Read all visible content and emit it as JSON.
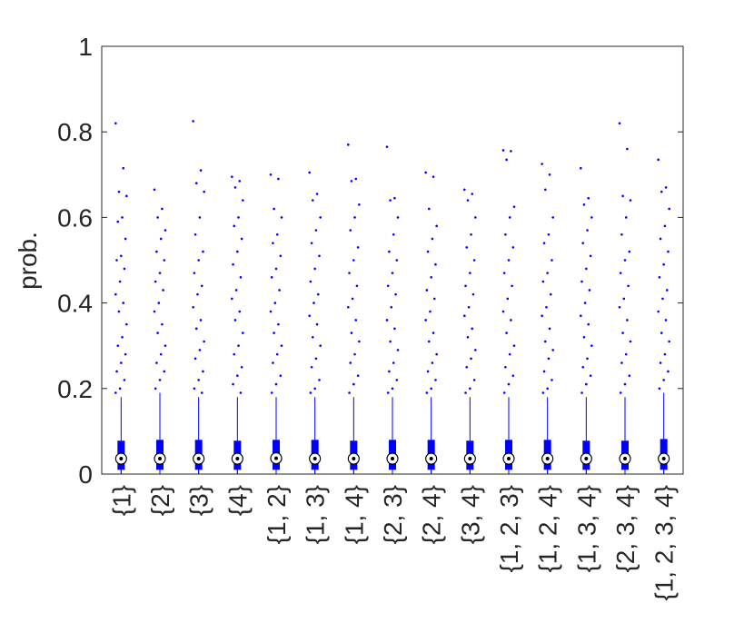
{
  "chart_data": {
    "type": "box",
    "ylabel": "prob.",
    "color": "#0000ff",
    "ylim": [
      0,
      1
    ],
    "yticks": [
      0,
      0.2,
      0.4,
      0.6,
      0.8,
      1
    ],
    "categories": [
      "{1}",
      "{2}",
      "{3}",
      "{4}",
      "{1, 2}",
      "{1, 3}",
      "{1, 4}",
      "{2, 3}",
      "{2, 4}",
      "{3, 4}",
      "{1, 2, 3}",
      "{1, 2, 4}",
      "{1, 3, 4}",
      "{2, 3, 4}",
      "{1, 2, 3, 4}"
    ],
    "boxes": [
      {
        "whisker_low": 0,
        "q1": 0.01,
        "median": 0.036,
        "q3": 0.078,
        "whisker_high": 0.18,
        "outliers": [
          0.82,
          0.715,
          0.66,
          0.65,
          0.6,
          0.59,
          0.55,
          0.51,
          0.5,
          0.48,
          0.45,
          0.42,
          0.4,
          0.38,
          0.35,
          0.32,
          0.3,
          0.28,
          0.26,
          0.24,
          0.22,
          0.2,
          0.19
        ]
      },
      {
        "whisker_low": 0,
        "q1": 0.01,
        "median": 0.036,
        "q3": 0.08,
        "whisker_high": 0.19,
        "outliers": [
          0.665,
          0.62,
          0.6,
          0.57,
          0.55,
          0.52,
          0.5,
          0.47,
          0.45,
          0.43,
          0.4,
          0.38,
          0.35,
          0.33,
          0.3,
          0.28,
          0.26,
          0.24,
          0.22,
          0.2
        ]
      },
      {
        "whisker_low": 0,
        "q1": 0.01,
        "median": 0.036,
        "q3": 0.08,
        "whisker_high": 0.18,
        "outliers": [
          0.825,
          0.71,
          0.68,
          0.66,
          0.6,
          0.56,
          0.52,
          0.5,
          0.47,
          0.44,
          0.42,
          0.39,
          0.36,
          0.34,
          0.31,
          0.29,
          0.27,
          0.24,
          0.22,
          0.2,
          0.19
        ]
      },
      {
        "whisker_low": 0,
        "q1": 0.01,
        "median": 0.036,
        "q3": 0.078,
        "whisker_high": 0.18,
        "outliers": [
          0.695,
          0.685,
          0.67,
          0.64,
          0.6,
          0.58,
          0.55,
          0.52,
          0.49,
          0.46,
          0.43,
          0.41,
          0.38,
          0.36,
          0.33,
          0.3,
          0.28,
          0.25,
          0.23,
          0.21,
          0.19
        ]
      },
      {
        "whisker_low": 0,
        "q1": 0.01,
        "median": 0.037,
        "q3": 0.08,
        "whisker_high": 0.18,
        "outliers": [
          0.7,
          0.69,
          0.62,
          0.6,
          0.56,
          0.54,
          0.51,
          0.48,
          0.46,
          0.43,
          0.4,
          0.38,
          0.35,
          0.33,
          0.3,
          0.28,
          0.26,
          0.23,
          0.21,
          0.19
        ]
      },
      {
        "whisker_low": 0,
        "q1": 0.01,
        "median": 0.036,
        "q3": 0.08,
        "whisker_high": 0.18,
        "outliers": [
          0.705,
          0.655,
          0.64,
          0.6,
          0.57,
          0.54,
          0.51,
          0.48,
          0.45,
          0.42,
          0.4,
          0.37,
          0.35,
          0.32,
          0.3,
          0.27,
          0.25,
          0.22,
          0.2,
          0.19
        ]
      },
      {
        "whisker_low": 0,
        "q1": 0.01,
        "median": 0.036,
        "q3": 0.078,
        "whisker_high": 0.18,
        "outliers": [
          0.77,
          0.69,
          0.685,
          0.63,
          0.6,
          0.57,
          0.53,
          0.5,
          0.47,
          0.44,
          0.41,
          0.39,
          0.36,
          0.33,
          0.31,
          0.28,
          0.26,
          0.23,
          0.21,
          0.19
        ]
      },
      {
        "whisker_low": 0,
        "q1": 0.01,
        "median": 0.036,
        "q3": 0.08,
        "whisker_high": 0.18,
        "outliers": [
          0.765,
          0.645,
          0.64,
          0.6,
          0.56,
          0.52,
          0.5,
          0.47,
          0.44,
          0.42,
          0.39,
          0.36,
          0.34,
          0.31,
          0.29,
          0.26,
          0.24,
          0.22,
          0.2,
          0.19
        ]
      },
      {
        "whisker_low": 0,
        "q1": 0.01,
        "median": 0.036,
        "q3": 0.08,
        "whisker_high": 0.18,
        "outliers": [
          0.705,
          0.695,
          0.62,
          0.58,
          0.55,
          0.52,
          0.49,
          0.46,
          0.43,
          0.41,
          0.38,
          0.36,
          0.33,
          0.31,
          0.28,
          0.26,
          0.24,
          0.22,
          0.2,
          0.19
        ]
      },
      {
        "whisker_low": 0,
        "q1": 0.01,
        "median": 0.036,
        "q3": 0.078,
        "whisker_high": 0.18,
        "outliers": [
          0.665,
          0.655,
          0.64,
          0.6,
          0.56,
          0.53,
          0.5,
          0.47,
          0.44,
          0.42,
          0.39,
          0.37,
          0.34,
          0.32,
          0.29,
          0.27,
          0.25,
          0.22,
          0.2,
          0.19
        ]
      },
      {
        "whisker_low": 0,
        "q1": 0.01,
        "median": 0.036,
        "q3": 0.08,
        "whisker_high": 0.18,
        "outliers": [
          0.757,
          0.755,
          0.735,
          0.625,
          0.6,
          0.56,
          0.53,
          0.5,
          0.47,
          0.44,
          0.41,
          0.38,
          0.36,
          0.33,
          0.3,
          0.28,
          0.25,
          0.23,
          0.21,
          0.19
        ]
      },
      {
        "whisker_low": 0,
        "q1": 0.01,
        "median": 0.036,
        "q3": 0.08,
        "whisker_high": 0.18,
        "outliers": [
          0.725,
          0.7,
          0.665,
          0.6,
          0.56,
          0.54,
          0.5,
          0.47,
          0.45,
          0.42,
          0.39,
          0.37,
          0.34,
          0.31,
          0.29,
          0.27,
          0.24,
          0.22,
          0.2,
          0.19
        ]
      },
      {
        "whisker_low": 0,
        "q1": 0.01,
        "median": 0.036,
        "q3": 0.078,
        "whisker_high": 0.18,
        "outliers": [
          0.715,
          0.645,
          0.63,
          0.6,
          0.57,
          0.54,
          0.51,
          0.48,
          0.45,
          0.43,
          0.4,
          0.37,
          0.35,
          0.32,
          0.3,
          0.27,
          0.25,
          0.23,
          0.21,
          0.19
        ]
      },
      {
        "whisker_low": 0,
        "q1": 0.01,
        "median": 0.036,
        "q3": 0.078,
        "whisker_high": 0.18,
        "outliers": [
          0.82,
          0.76,
          0.65,
          0.64,
          0.6,
          0.56,
          0.52,
          0.5,
          0.47,
          0.44,
          0.41,
          0.39,
          0.36,
          0.33,
          0.31,
          0.28,
          0.26,
          0.23,
          0.21,
          0.19
        ]
      },
      {
        "whisker_low": 0,
        "q1": 0.01,
        "median": 0.036,
        "q3": 0.082,
        "whisker_high": 0.19,
        "outliers": [
          0.735,
          0.67,
          0.66,
          0.62,
          0.58,
          0.55,
          0.52,
          0.49,
          0.46,
          0.43,
          0.41,
          0.38,
          0.36,
          0.33,
          0.31,
          0.28,
          0.26,
          0.24,
          0.22,
          0.2
        ]
      }
    ]
  }
}
